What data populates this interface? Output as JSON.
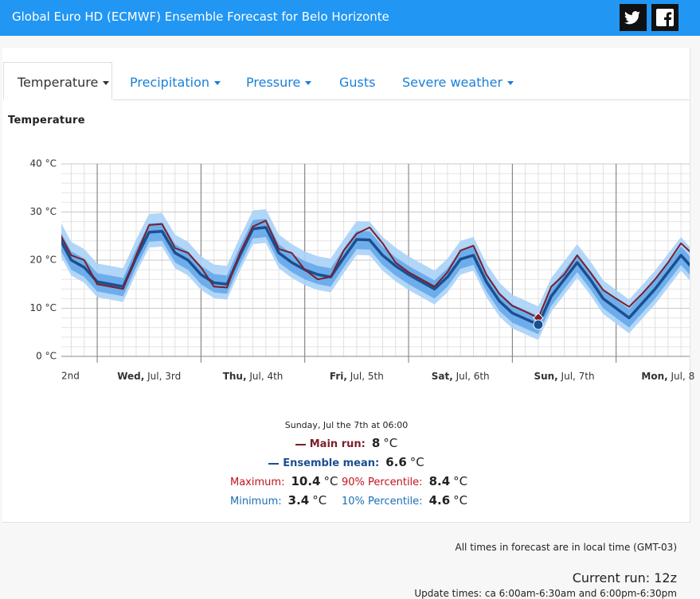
{
  "header": {
    "title": "Global Euro HD (ECMWF) Ensemble Forecast for Belo Horizonte"
  },
  "tabs": [
    "Temperature",
    "Precipitation",
    "Pressure",
    "Gusts",
    "Severe weather"
  ],
  "chart_data": {
    "type": "line",
    "title": "Temperature",
    "unit": "°C",
    "tooltip_title": "Sunday, Jul the 7th at 06:00",
    "x": [
      15,
      18,
      21,
      24,
      27,
      30,
      33,
      36,
      39,
      42,
      45,
      48,
      51,
      54,
      57,
      60,
      63,
      66,
      69,
      72,
      75,
      78,
      81,
      84,
      87,
      90,
      93,
      96,
      99,
      102,
      105,
      108,
      111,
      114,
      117,
      120,
      123,
      126,
      129,
      132,
      135,
      138,
      141,
      144,
      147,
      150,
      153,
      156,
      159,
      162
    ],
    "xlim": [
      15.7,
      161
    ],
    "xticks": [
      {
        "value": 12,
        "label": "2nd"
      },
      {
        "value": 36,
        "label": "Wed, Jul, 3rd"
      },
      {
        "value": 60,
        "label": "Thu, Jul, 4th"
      },
      {
        "value": 84,
        "label": "Fri, Jul, 5th"
      },
      {
        "value": 108,
        "label": "Sat, Jul, 6th"
      },
      {
        "value": 132,
        "label": "Sun, Jul, 7th"
      },
      {
        "value": 156,
        "label": "Mon, Jul, 8"
      }
    ],
    "xgrid": [
      24,
      48,
      72,
      96,
      120,
      144
    ],
    "ylim": [
      0,
      40
    ],
    "yticks": [
      {
        "value": 0,
        "label": "0 °C"
      },
      {
        "value": 10,
        "label": "10 °C"
      },
      {
        "value": 20,
        "label": "20 °C"
      },
      {
        "value": 30,
        "label": "30 °C"
      },
      {
        "value": 40,
        "label": "40 °C"
      }
    ],
    "grid": true,
    "series": [
      {
        "name": "Main run",
        "color": "#7b1f2a",
        "label_color": "#7b1f2a",
        "values": [
          26,
          21,
          20,
          15,
          14.5,
          14,
          21,
          27.3,
          27.5,
          22.5,
          21.5,
          18.5,
          14.5,
          14.3,
          21.5,
          27,
          28.2,
          22.3,
          21.5,
          18,
          16,
          16.5,
          22,
          25.5,
          26.8,
          23.5,
          19.5,
          17.5,
          16,
          14.5,
          17.5,
          22,
          23,
          17,
          13,
          10.5,
          9.3,
          8,
          14.5,
          17,
          21,
          17.5,
          13.8,
          12,
          10.3,
          13,
          16,
          19.5,
          23.5,
          21
        ]
      },
      {
        "name": "Ensemble mean",
        "color": "#1c4f8f",
        "label_color": "#1c4f8f",
        "values": [
          25,
          20,
          18.5,
          15.5,
          15,
          14.5,
          20.5,
          25.8,
          26,
          21.5,
          20,
          17,
          15.3,
          15,
          21,
          26.5,
          26.8,
          21.5,
          19.5,
          18,
          17,
          16.5,
          20.5,
          24.3,
          24.2,
          21,
          18.8,
          17,
          15.5,
          14,
          16.5,
          20.2,
          21,
          15.5,
          11.5,
          9,
          7.8,
          6.6,
          12.5,
          16,
          19.5,
          16,
          12,
          10,
          8,
          11,
          14,
          17.5,
          21,
          18
        ]
      },
      {
        "name": "Maximum",
        "color": "#a9d2f7",
        "label_color": "#c0141e",
        "values": [
          28.8,
          23.8,
          22.3,
          19.3,
          18.8,
          18.3,
          24.3,
          29.6,
          29.8,
          25.3,
          23.8,
          20.8,
          19.1,
          18.8,
          24.8,
          30.3,
          30.6,
          25.3,
          23.3,
          21.8,
          20.8,
          20.3,
          24.3,
          28.1,
          28,
          24.8,
          22.6,
          20.8,
          19.3,
          17.8,
          20.3,
          24,
          24.8,
          19.3,
          15.3,
          12.8,
          11.6,
          10.4,
          16.3,
          19.8,
          23.3,
          19.8,
          15.8,
          13.8,
          11.8,
          14.8,
          17.8,
          21.3,
          24.8,
          21.8
        ]
      },
      {
        "name": "90% Percentile",
        "color": "#66a9ea",
        "label_color": "#c0141e",
        "values": [
          26.8,
          21.8,
          20.3,
          17.3,
          16.8,
          16.3,
          22.3,
          27.6,
          27.8,
          23.3,
          21.8,
          18.8,
          17.1,
          16.8,
          22.8,
          28.3,
          28.6,
          23.3,
          21.3,
          19.8,
          18.8,
          18.3,
          22.3,
          26.1,
          26,
          22.8,
          20.6,
          18.8,
          17.3,
          15.8,
          18.3,
          22,
          22.8,
          17.3,
          13.3,
          10.8,
          9.6,
          8.4,
          14.3,
          17.8,
          21.3,
          17.8,
          13.8,
          11.8,
          9.8,
          12.8,
          15.8,
          19.3,
          22.8,
          19.8
        ]
      },
      {
        "name": "Minimum",
        "color": "#a9d2f7",
        "label_color": "#1b6fb5",
        "values": [
          21.8,
          16.8,
          15.3,
          12.3,
          11.8,
          11.3,
          17.3,
          22.6,
          22.8,
          18.3,
          16.8,
          13.8,
          12.1,
          11.8,
          17.8,
          23.3,
          23.6,
          18.3,
          16.3,
          14.8,
          13.8,
          13.3,
          17.3,
          21.1,
          21,
          17.8,
          15.6,
          13.8,
          12.3,
          10.8,
          13.3,
          17,
          17.8,
          12.3,
          8.3,
          5.8,
          4.6,
          3.4,
          9.3,
          12.8,
          16.3,
          12.8,
          8.8,
          6.8,
          4.8,
          7.8,
          10.8,
          14.3,
          17.8,
          14.8
        ]
      },
      {
        "name": "10% Percentile",
        "color": "#66a9ea",
        "label_color": "#1b6fb5",
        "values": [
          23,
          18,
          16.5,
          13.5,
          13,
          12.5,
          18.5,
          23.8,
          24,
          19.5,
          18,
          15,
          13.3,
          13,
          19,
          24.5,
          24.8,
          19.5,
          17.5,
          16,
          15,
          14.5,
          18.5,
          22.3,
          22.2,
          19,
          16.8,
          15,
          13.5,
          12,
          14.5,
          18.2,
          19,
          13.5,
          9.5,
          7,
          5.8,
          4.6,
          10.5,
          14,
          17.5,
          14,
          10,
          8,
          6,
          9,
          12,
          15.5,
          19,
          16
        ]
      }
    ]
  },
  "footer": {
    "timezone_note": "All times in forecast are in local time (GMT-03)",
    "current_run": "Current run: 12z",
    "update_times": "Update times: ca 6:00am-6:30am and 6:00pm-6:30pm"
  }
}
